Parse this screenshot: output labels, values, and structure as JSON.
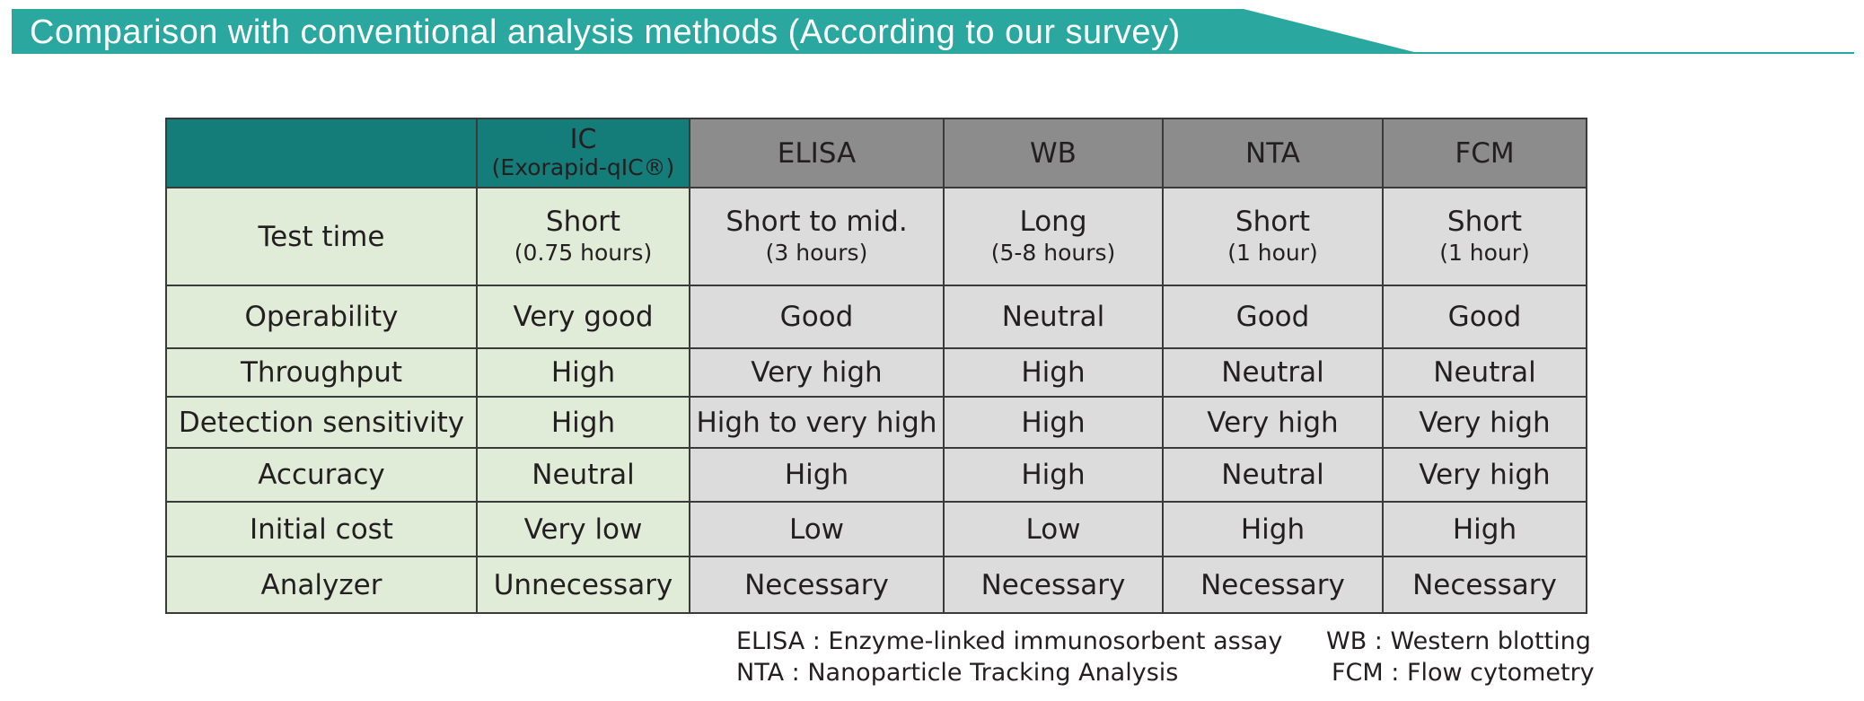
{
  "banner": {
    "title": "Comparison with conventional analysis methods (According to our survey)",
    "color": "#2aa8a0"
  },
  "table": {
    "columns": [
      {
        "name": "IC",
        "sub": "(Exorapid-qIC®)"
      },
      {
        "name": "ELISA"
      },
      {
        "name": "WB"
      },
      {
        "name": "NTA"
      },
      {
        "name": "FCM"
      }
    ],
    "rows": [
      {
        "label": "Test time",
        "cells": [
          {
            "value": "Short",
            "sub": "(0.75 hours)"
          },
          {
            "value": "Short to mid.",
            "sub": "(3 hours)"
          },
          {
            "value": "Long",
            "sub": "(5-8 hours)"
          },
          {
            "value": "Short",
            "sub": "(1 hour)"
          },
          {
            "value": "Short",
            "sub": "(1 hour)"
          }
        ]
      },
      {
        "label": "Operability",
        "cells": [
          {
            "value": "Very good"
          },
          {
            "value": "Good"
          },
          {
            "value": "Neutral"
          },
          {
            "value": "Good"
          },
          {
            "value": "Good"
          }
        ]
      },
      {
        "label": "Throughput",
        "cells": [
          {
            "value": "High"
          },
          {
            "value": "Very high"
          },
          {
            "value": "High"
          },
          {
            "value": "Neutral"
          },
          {
            "value": "Neutral"
          }
        ]
      },
      {
        "label": "Detection sensitivity",
        "cells": [
          {
            "value": "High"
          },
          {
            "value": "High to very high"
          },
          {
            "value": "High"
          },
          {
            "value": "Very high"
          },
          {
            "value": "Very high"
          }
        ]
      },
      {
        "label": "Accuracy",
        "cells": [
          {
            "value": "Neutral"
          },
          {
            "value": "High"
          },
          {
            "value": "High"
          },
          {
            "value": "Neutral"
          },
          {
            "value": "Very high"
          }
        ]
      },
      {
        "label": "Initial cost",
        "cells": [
          {
            "value": "Very low"
          },
          {
            "value": "Low"
          },
          {
            "value": "Low"
          },
          {
            "value": "High"
          },
          {
            "value": "High"
          }
        ]
      },
      {
        "label": "Analyzer",
        "cells": [
          {
            "value": "Unnecessary"
          },
          {
            "value": "Necessary"
          },
          {
            "value": "Necessary"
          },
          {
            "value": "Necessary"
          },
          {
            "value": "Necessary"
          }
        ]
      }
    ]
  },
  "legend": {
    "elisa": "ELISA : Enzyme-linked immunosorbent assay",
    "wb": "WB : Western blotting",
    "nta": "NTA : Nanoparticle Tracking Analysis",
    "fcm": "FCM : Flow cytometry"
  }
}
